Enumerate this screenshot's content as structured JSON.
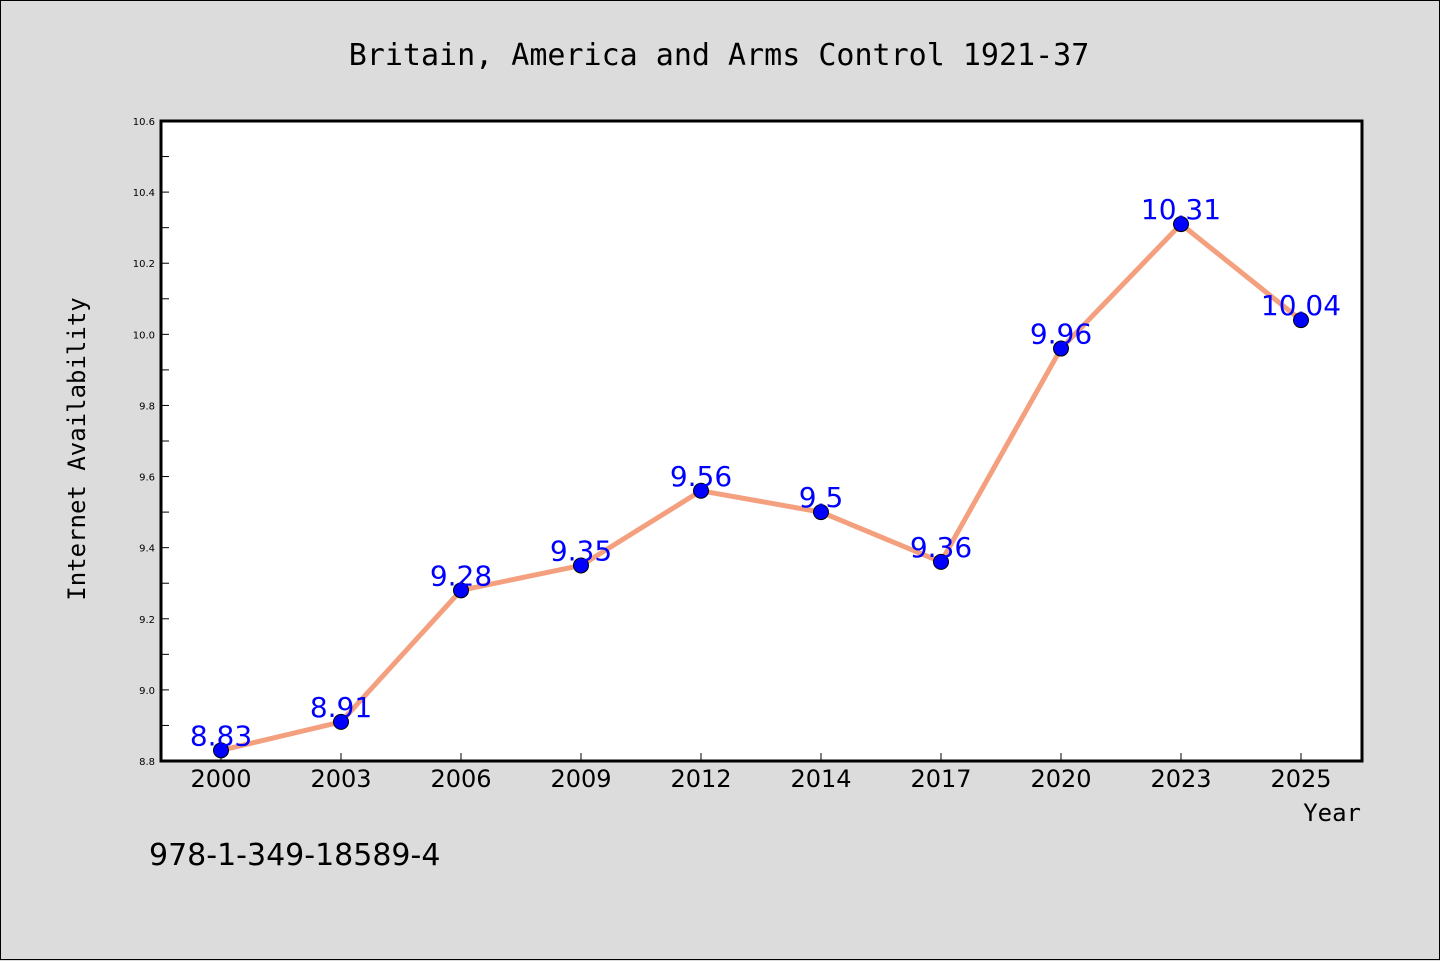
{
  "footer_text": "978-1-349-18589-4",
  "chart_data": {
    "type": "line",
    "title": "Britain, America and Arms Control 1921-37",
    "xlabel": "Year",
    "ylabel": "Internet Availability",
    "categories": [
      "2000",
      "2003",
      "2006",
      "2009",
      "2012",
      "2014",
      "2017",
      "2020",
      "2023",
      "2025"
    ],
    "series": [
      {
        "values": [
          8.83,
          8.91,
          9.28,
          9.35,
          9.56,
          9.5,
          9.36,
          9.96,
          10.31,
          10.04
        ],
        "data_labels": [
          "8.83",
          "8.91",
          "9.28",
          "9.35",
          "9.56",
          "9.5",
          "9.36",
          "9.96",
          "10.31",
          "10.04"
        ],
        "line_color": "#f4a07e",
        "marker_color": "#0000ff"
      }
    ],
    "ylim": [
      8.8,
      10.6
    ],
    "yticks": [
      "8.8",
      "9.0",
      "9.2",
      "9.4",
      "9.6",
      "9.8",
      "10.0",
      "10.2",
      "10.4",
      "10.6"
    ],
    "grid": false,
    "legend": "none",
    "plot_background": "#ffffff",
    "figure_background": "#dcdcdc"
  }
}
